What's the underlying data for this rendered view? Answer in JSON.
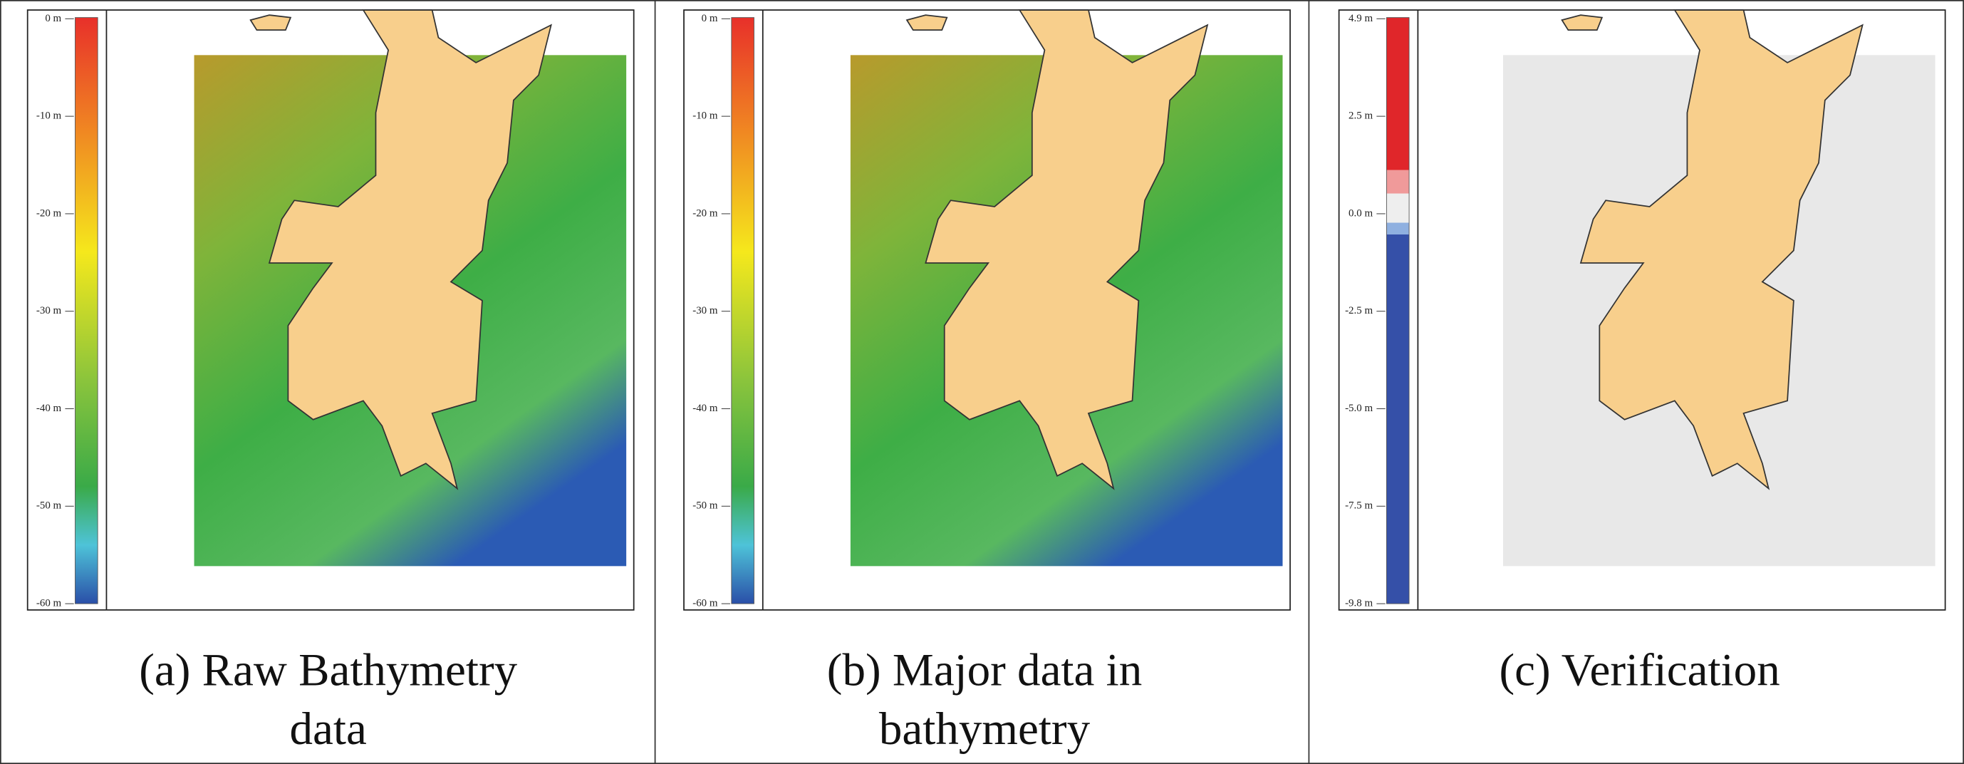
{
  "panels": [
    {
      "caption": [
        "(a) Raw Bathymetry",
        "data"
      ],
      "scale": [
        "0 m",
        "-10 m",
        "-20 m",
        "-30 m",
        "-40 m",
        "-50 m",
        "-60 m"
      ]
    },
    {
      "caption": [
        "(b) Major data in",
        "bathymetry"
      ],
      "scale": [
        "0 m",
        "-10 m",
        "-20 m",
        "-30 m",
        "-40 m",
        "-50 m",
        "-60 m"
      ]
    },
    {
      "caption": [
        "(c) Verification"
      ],
      "scale": [
        "4.9 m",
        "2.5 m",
        "0.0 m",
        "-2.5 m",
        "-5.0 m",
        "-7.5 m",
        "-9.8 m"
      ]
    }
  ]
}
